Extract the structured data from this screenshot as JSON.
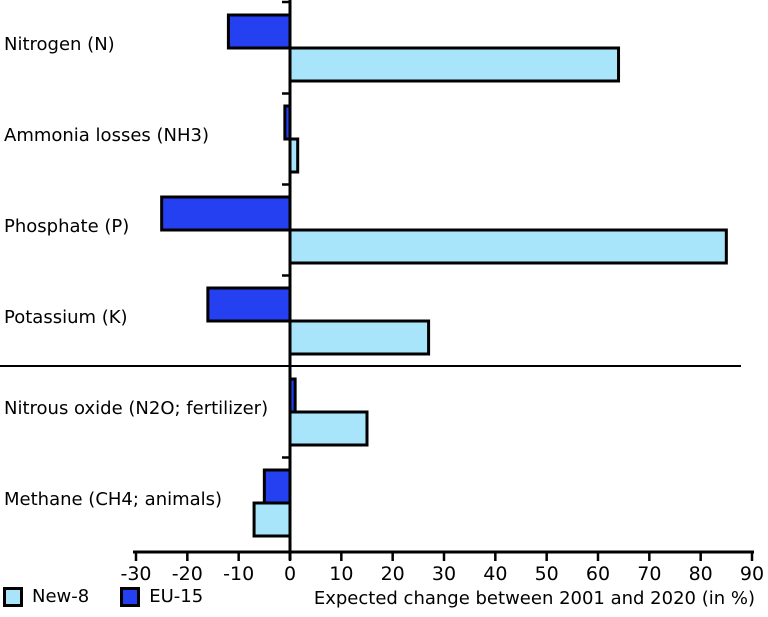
{
  "figure": {
    "background": "#ffffff",
    "text_color": "#000000",
    "outline_color": "#000000"
  },
  "chart_data": {
    "type": "bar",
    "orientation": "horizontal",
    "title": "",
    "xlabel": "Expected change between 2001 and 2020 (in %)",
    "ylabel": "",
    "xlim": [
      -30,
      90
    ],
    "xticks": [
      -30,
      -20,
      -10,
      0,
      10,
      20,
      30,
      40,
      50,
      60,
      70,
      80,
      90
    ],
    "grid": false,
    "legend_position": "bottom-left",
    "categories": [
      "Nitrogen (N)",
      "Ammonia losses (NH3)",
      "Phosphate (P)",
      "Potassium (K)",
      "Nitrous oxide (N2O; fertilizer)",
      "Methane (CH4; animals)"
    ],
    "series": [
      {
        "name": "New-8",
        "color": "#a8e4fa",
        "values": [
          64,
          1.5,
          85,
          27,
          15,
          -7
        ]
      },
      {
        "name": "EU-15",
        "color": "#2440f0",
        "values": [
          -12,
          -1,
          -25,
          -16,
          1,
          -5
        ]
      }
    ],
    "separator_after_category_index": 3,
    "bar_outline_color": "#000000"
  }
}
